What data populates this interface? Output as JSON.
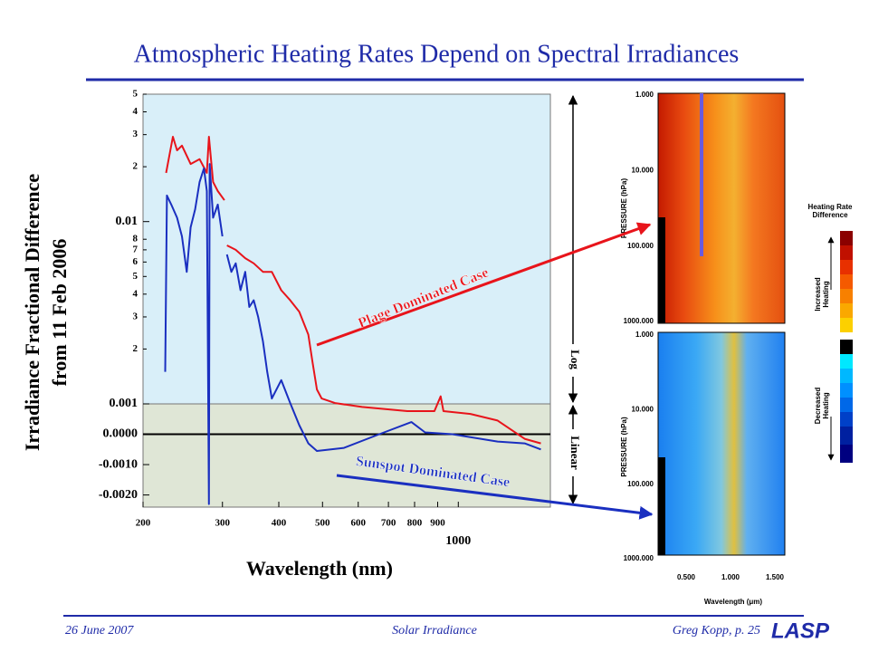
{
  "slide": {
    "title": "Atmospheric Heating Rates Depend on Spectral Irradiances",
    "footer": {
      "date": "26 June 2007",
      "topic": "Solar Irradiance",
      "author": "Greg Kopp, p. 25",
      "logo": "LASP"
    }
  },
  "chart_data": {
    "type": "line",
    "y_label": [
      "Irradiance Fractional Difference",
      "from 11 Feb 2006"
    ],
    "x_label": "Wavelength (nm)",
    "xscale": "log",
    "yscale": "log-linear",
    "linthresh": 0.001,
    "xlim": [
      200,
      1600
    ],
    "ylim": [
      -0.0024,
      0.05
    ],
    "xticks": [
      200,
      300,
      400,
      500,
      600,
      700,
      800,
      900,
      1000
    ],
    "yticks": [
      {
        "value": 0.05,
        "label": "5"
      },
      {
        "value": 0.04,
        "label": "4"
      },
      {
        "value": 0.03,
        "label": "3"
      },
      {
        "value": 0.02,
        "label": "2"
      },
      0.01,
      {
        "value": 0.008,
        "label": "8"
      },
      {
        "value": 0.007,
        "label": "7"
      },
      {
        "value": 0.006,
        "label": "6"
      },
      {
        "value": 0.005,
        "label": "5"
      },
      {
        "value": 0.004,
        "label": "4"
      },
      {
        "value": 0.003,
        "label": "3"
      },
      {
        "value": 0.002,
        "label": "2"
      },
      0.001,
      {
        "value": 0,
        "label": "0.0000"
      },
      {
        "value": -0.001,
        "label": "-0.0010"
      },
      {
        "value": -0.002,
        "label": "-0.0020"
      }
    ],
    "scale_labels": {
      "log": "Log",
      "linear": "Linear"
    },
    "series": [
      {
        "name": "Plage Dominated Case",
        "color": "#e8141b",
        "x": [
          225,
          233,
          238,
          244,
          255,
          267,
          277,
          280,
          286,
          293,
          303,
          305,
          307,
          321,
          337,
          352,
          369,
          386,
          405,
          424,
          444,
          465,
          475,
          486,
          498,
          533,
          612,
          771,
          885,
          914,
          927,
          1064,
          1222,
          1403,
          1524
        ],
        "values": [
          0.0185,
          0.0292,
          0.0246,
          0.0261,
          0.0207,
          0.022,
          0.0185,
          0.0292,
          0.0165,
          0.0147,
          0.0131,
          null,
          0.0074,
          0.007,
          0.0063,
          0.0059,
          0.0053,
          0.0053,
          0.0042,
          0.0037,
          0.0032,
          0.0024,
          0.0017,
          0.0012,
          0.00107,
          0.00101,
          0.0009,
          0.00076,
          0.00076,
          0.0011,
          0.00076,
          0.00067,
          0.00045,
          -0.00015,
          -0.0003
        ]
      },
      {
        "name": "Sunspot Dominated Case",
        "color": "#1a2fc0",
        "x": [
          224,
          226,
          231,
          238,
          244,
          250,
          255,
          261,
          267,
          273,
          277,
          280,
          281,
          286,
          293,
          300,
          304,
          307,
          314,
          321,
          329,
          337,
          344,
          352,
          360,
          369,
          377,
          386,
          405,
          424,
          444,
          465,
          486,
          558,
          668,
          787,
          844,
          970,
          1222,
          1403,
          1524
        ],
        "values": [
          0.0015,
          0.0139,
          0.0124,
          0.0105,
          0.0083,
          0.0053,
          0.0093,
          0.0117,
          0.0165,
          0.0196,
          0.0147,
          -0.0023,
          0.0207,
          0.0105,
          0.0124,
          0.0083,
          null,
          0.0066,
          0.0053,
          0.0059,
          0.0042,
          0.0053,
          0.0034,
          0.0037,
          0.003,
          0.0022,
          0.0015,
          0.00107,
          0.00135,
          0.00101,
          0.0003,
          -0.0003,
          -0.00055,
          -0.00045,
          0,
          0.0004,
          6e-05,
          0,
          -0.00024,
          -0.0003,
          -0.0005
        ]
      }
    ]
  },
  "heatmaps": {
    "pressure_ticks": [
      "1.000",
      "10.000",
      "100.000",
      "1000.000"
    ],
    "y_label": "PRESSURE (hPa)",
    "x_ticks": [
      "0.500",
      "1.000",
      "1.500"
    ],
    "x_label": "Wavelength (μm)",
    "colorbar_title": [
      "Heating Rate",
      "Difference"
    ],
    "increased": [
      "Increased",
      "Heating"
    ],
    "decreased": [
      "Decreased",
      "Heating"
    ]
  }
}
